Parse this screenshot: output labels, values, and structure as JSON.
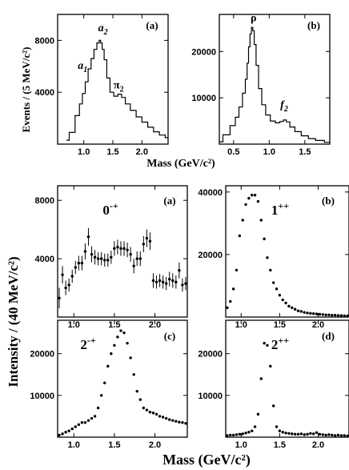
{
  "chart_data": [
    {
      "id": "top-a",
      "type": "line",
      "panel_label": "(a)",
      "xlim": [
        0.55,
        2.45
      ],
      "ylim": [
        0,
        10000
      ],
      "xticks": [
        "1.0",
        "1.5",
        "2.0"
      ],
      "xtick_values": [
        1.0,
        1.5,
        2.0
      ],
      "yticks": [
        "4000",
        "8000"
      ],
      "ytick_values": [
        4000,
        8000
      ],
      "annotations": [
        {
          "text": "a",
          "sub": "1",
          "x": 0.98,
          "y": 5800
        },
        {
          "text": "a",
          "sub": "2",
          "x": 1.33,
          "y": 8700
        },
        {
          "text": "π",
          "sub": "2",
          "x": 1.6,
          "y": 4300
        }
      ],
      "series": [
        {
          "x": [
            0.7,
            0.8,
            0.9,
            0.95,
            1.0,
            1.05,
            1.1,
            1.15,
            1.2,
            1.25,
            1.28,
            1.3,
            1.33,
            1.37,
            1.42,
            1.48,
            1.55,
            1.62,
            1.68,
            1.75,
            1.85,
            1.95,
            2.05,
            2.15,
            2.25,
            2.35,
            2.45
          ],
          "y": [
            300,
            900,
            2200,
            3100,
            3900,
            4800,
            5800,
            6600,
            7300,
            7800,
            8000,
            7800,
            7300,
            6500,
            5100,
            4000,
            3700,
            3850,
            3600,
            3100,
            2600,
            2100,
            1700,
            1300,
            950,
            700,
            500
          ]
        }
      ]
    },
    {
      "id": "top-b",
      "type": "line",
      "panel_label": "(b)",
      "xlim": [
        0.3,
        1.85
      ],
      "ylim": [
        0,
        28000
      ],
      "xticks": [
        "0.5",
        "1.0",
        "1.5"
      ],
      "xtick_values": [
        0.5,
        1.0,
        1.5
      ],
      "yticks": [
        "10000",
        "20000"
      ],
      "ytick_values": [
        10000,
        20000
      ],
      "annotations": [
        {
          "text": "ρ",
          "sub": "",
          "x": 0.78,
          "y": 26500
        },
        {
          "text": "f",
          "sub": "2",
          "x": 1.21,
          "y": 7800
        }
      ],
      "series": [
        {
          "x": [
            0.3,
            0.4,
            0.5,
            0.55,
            0.6,
            0.65,
            0.68,
            0.7,
            0.72,
            0.74,
            0.76,
            0.78,
            0.8,
            0.83,
            0.87,
            0.92,
            0.98,
            1.05,
            1.12,
            1.18,
            1.22,
            1.26,
            1.32,
            1.4,
            1.5,
            1.6,
            1.7,
            1.85
          ],
          "y": [
            500,
            2000,
            4000,
            5800,
            8000,
            11000,
            14000,
            17500,
            21000,
            23800,
            25200,
            24500,
            21500,
            17000,
            12000,
            8500,
            6300,
            5000,
            4600,
            4900,
            5200,
            4800,
            3700,
            2700,
            1800,
            1200,
            800,
            400
          ]
        }
      ]
    },
    {
      "id": "bottom-a",
      "type": "scatter",
      "panel_label": "(a)",
      "state": "0",
      "state_sup": "-+",
      "xlim": [
        0.8,
        2.4
      ],
      "ylim": [
        0,
        9000
      ],
      "xticks": [
        "1.0",
        "1.5",
        "2.0"
      ],
      "xtick_values": [
        1.0,
        1.5,
        2.0
      ],
      "yticks": [
        "4000",
        "8000"
      ],
      "ytick_values": [
        4000,
        8000
      ],
      "series": [
        {
          "x": [
            0.82,
            0.86,
            0.9,
            0.94,
            0.98,
            1.02,
            1.06,
            1.1,
            1.14,
            1.18,
            1.22,
            1.26,
            1.3,
            1.34,
            1.38,
            1.42,
            1.46,
            1.5,
            1.54,
            1.58,
            1.62,
            1.66,
            1.7,
            1.74,
            1.78,
            1.82,
            1.86,
            1.9,
            1.94,
            1.98,
            2.02,
            2.06,
            2.1,
            2.14,
            2.18,
            2.22,
            2.26,
            2.3,
            2.34,
            2.38
          ],
          "y": [
            1300,
            2900,
            2000,
            2200,
            2800,
            3400,
            3700,
            3700,
            4500,
            5500,
            4300,
            4100,
            4000,
            4000,
            3900,
            3900,
            4100,
            4700,
            4800,
            4700,
            4700,
            4600,
            4300,
            3500,
            4000,
            4000,
            5000,
            5400,
            5200,
            2500,
            2400,
            2500,
            2400,
            2300,
            2600,
            2500,
            2400,
            3200,
            2200,
            2300
          ],
          "err": [
            700,
            600,
            500,
            450,
            450,
            450,
            500,
            500,
            550,
            600,
            550,
            500,
            450,
            450,
            450,
            450,
            450,
            500,
            500,
            500,
            500,
            500,
            500,
            500,
            500,
            500,
            550,
            600,
            600,
            500,
            450,
            450,
            450,
            450,
            500,
            500,
            450,
            550,
            450,
            450
          ]
        }
      ]
    },
    {
      "id": "bottom-b",
      "type": "scatter",
      "panel_label": "(b)",
      "state": "1",
      "state_sup": "++",
      "xlim": [
        0.8,
        2.4
      ],
      "ylim": [
        0,
        42000
      ],
      "xticks": [
        "1.0",
        "1.5",
        "2.0"
      ],
      "xtick_values": [
        1.0,
        1.5,
        2.0
      ],
      "yticks": [
        "20000",
        "40000"
      ],
      "ytick_values": [
        20000,
        40000
      ],
      "series": [
        {
          "x": [
            0.82,
            0.86,
            0.9,
            0.94,
            0.98,
            1.02,
            1.06,
            1.1,
            1.14,
            1.18,
            1.22,
            1.26,
            1.3,
            1.34,
            1.38,
            1.42,
            1.46,
            1.5,
            1.54,
            1.58,
            1.62,
            1.66,
            1.7,
            1.74,
            1.78,
            1.82,
            1.86,
            1.9,
            1.94,
            1.98,
            2.02,
            2.06,
            2.1,
            2.14,
            2.18,
            2.22,
            2.26,
            2.3,
            2.34,
            2.38
          ],
          "y": [
            3000,
            5000,
            9000,
            15000,
            26000,
            31000,
            36000,
            38000,
            39000,
            39000,
            37000,
            31000,
            25000,
            19000,
            15000,
            11000,
            9000,
            7000,
            5500,
            4500,
            3500,
            3000,
            2500,
            2000,
            1800,
            1500,
            1300,
            1200,
            1100,
            1000,
            900,
            800,
            700,
            700,
            600,
            600,
            500,
            500,
            400,
            400
          ]
        }
      ]
    },
    {
      "id": "bottom-c",
      "type": "scatter",
      "panel_label": "(c)",
      "state": "2",
      "state_sup": "-+",
      "xlim": [
        0.8,
        2.4
      ],
      "ylim": [
        0,
        28000
      ],
      "xticks": [
        "1.0",
        "1.5",
        "2.0"
      ],
      "xtick_values": [
        1.0,
        1.5,
        2.0
      ],
      "yticks": [
        "10000",
        "20000"
      ],
      "ytick_values": [
        10000,
        20000
      ],
      "series": [
        {
          "x": [
            0.82,
            0.86,
            0.9,
            0.94,
            0.98,
            1.02,
            1.06,
            1.1,
            1.14,
            1.18,
            1.22,
            1.26,
            1.3,
            1.34,
            1.38,
            1.42,
            1.46,
            1.5,
            1.54,
            1.58,
            1.62,
            1.66,
            1.7,
            1.74,
            1.78,
            1.82,
            1.86,
            1.9,
            1.94,
            1.98,
            2.02,
            2.06,
            2.1,
            2.14,
            2.18,
            2.22,
            2.26,
            2.3,
            2.34,
            2.38
          ],
          "y": [
            500,
            800,
            1200,
            1500,
            2000,
            2500,
            3000,
            3500,
            3500,
            4000,
            4500,
            5000,
            7000,
            10000,
            13000,
            17000,
            20000,
            22000,
            24000,
            25500,
            25000,
            22500,
            19000,
            15000,
            11000,
            9000,
            7000,
            6500,
            6000,
            5800,
            5500,
            5000,
            4800,
            4500,
            4200,
            4000,
            3800,
            3600,
            3500,
            3300
          ]
        }
      ]
    },
    {
      "id": "bottom-d",
      "type": "scatter",
      "panel_label": "(d)",
      "state": "2",
      "state_sup": "++",
      "xlim": [
        0.8,
        2.4
      ],
      "ylim": [
        0,
        28000
      ],
      "xticks": [
        "1.0",
        "1.5",
        "2.0"
      ],
      "xtick_values": [
        1.0,
        1.5,
        2.0
      ],
      "yticks": [
        "10000",
        "20000"
      ],
      "ytick_values": [
        10000,
        20000
      ],
      "series": [
        {
          "x": [
            0.82,
            0.86,
            0.9,
            0.94,
            0.98,
            1.02,
            1.06,
            1.1,
            1.14,
            1.18,
            1.22,
            1.26,
            1.3,
            1.34,
            1.38,
            1.42,
            1.46,
            1.5,
            1.54,
            1.58,
            1.62,
            1.66,
            1.7,
            1.74,
            1.78,
            1.82,
            1.86,
            1.9,
            1.94,
            1.98,
            2.02,
            2.06,
            2.1,
            2.14,
            2.18,
            2.22,
            2.26,
            2.3,
            2.34,
            2.38
          ],
          "y": [
            400,
            500,
            500,
            600,
            700,
            800,
            1000,
            1200,
            1500,
            2500,
            5500,
            14000,
            22500,
            22000,
            17000,
            7500,
            2500,
            1500,
            1200,
            1000,
            900,
            800,
            700,
            700,
            800,
            600,
            700,
            900,
            800,
            1100,
            700,
            600,
            500,
            600,
            500,
            400,
            500,
            400,
            400,
            300
          ]
        }
      ]
    }
  ],
  "axes_text": {
    "top_ylabel": "Events / (5 MeV/c²)",
    "top_xlabel": "Mass  (GeV/c²)",
    "bottom_ylabel": "Intensity / (40 MeV/c²)",
    "bottom_xlabel": "Mass  (GeV/c²)"
  }
}
